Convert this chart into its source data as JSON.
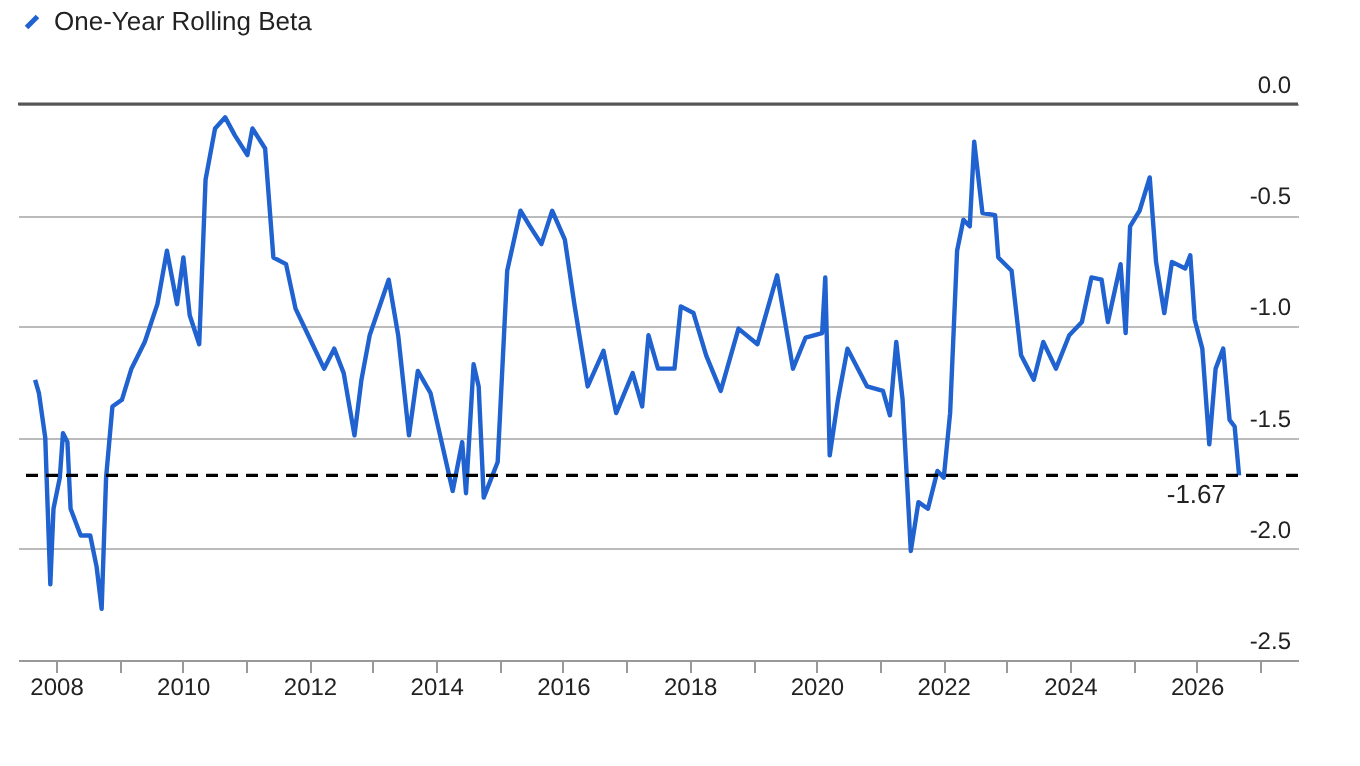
{
  "chart_data": {
    "type": "line",
    "legend": "top left",
    "grid": "y",
    "line_style": "solid",
    "marker": "none",
    "xlim": [
      2007.4,
      2027.6
    ],
    "xticks": [
      2008,
      {
        "value": 2009,
        "label": null
      },
      2010,
      {
        "value": 2011,
        "label": null
      },
      2012,
      {
        "value": 2013,
        "label": null
      },
      2014,
      {
        "value": 2015,
        "label": null
      },
      2016,
      {
        "value": 2017,
        "label": null
      },
      2018,
      {
        "value": 2019,
        "label": null
      },
      2020,
      {
        "value": 2021,
        "label": null
      },
      2022,
      {
        "value": 2023,
        "label": null
      },
      2024,
      {
        "value": 2025,
        "label": null
      },
      2026,
      {
        "value": 2027,
        "label": null
      }
    ],
    "ylim": [
      -2.5,
      0
    ],
    "yticks": [
      {
        "value": 0,
        "label": "0.0"
      },
      {
        "value": -0.5,
        "label": "-0.5"
      },
      {
        "value": -1,
        "label": "-1.0"
      },
      {
        "value": -1.5,
        "label": "-1.5"
      },
      {
        "value": -2,
        "label": "-2.0"
      },
      {
        "value": -2.5,
        "label": "-2.5"
      }
    ],
    "ref_lines": [
      {
        "axis": "y",
        "value": 0,
        "color": "#555555",
        "line_style": "solid"
      },
      {
        "axis": "y",
        "value": -1.67,
        "label": "-1.67",
        "color": "#000000",
        "line_style": "dashed"
      }
    ],
    "series": [
      {
        "name": "One-Year Rolling Beta",
        "color": "#1f62d0",
        "x": [
          2007.67,
          2007.73,
          2007.83,
          2007.91,
          2007.96,
          2008.06,
          2008.11,
          2008.18,
          2008.23,
          2008.39,
          2008.54,
          2008.64,
          2008.72,
          2008.79,
          2008.89,
          2009.04,
          2009.19,
          2009.4,
          2009.6,
          2009.75,
          2009.91,
          2010.01,
          2010.11,
          2010.26,
          2010.36,
          2010.51,
          2010.67,
          2010.82,
          2011.02,
          2011.1,
          2011.3,
          2011.43,
          2011.63,
          2011.78,
          2011.98,
          2012.23,
          2012.39,
          2012.54,
          2012.71,
          2012.82,
          2012.95,
          2013.25,
          2013.4,
          2013.57,
          2013.71,
          2013.91,
          2014.26,
          2014.41,
          2014.47,
          2014.59,
          2014.67,
          2014.75,
          2014.97,
          2015.12,
          2015.33,
          2015.48,
          2015.66,
          2015.83,
          2016.03,
          2016.18,
          2016.39,
          2016.64,
          2016.84,
          2017.1,
          2017.25,
          2017.35,
          2017.5,
          2017.76,
          2017.86,
          2018.06,
          2018.26,
          2018.49,
          2018.77,
          2019.07,
          2019.38,
          2019.63,
          2019.83,
          2020.09,
          2020.14,
          2020.21,
          2020.34,
          2020.49,
          2020.8,
          2021.05,
          2021.16,
          2021.26,
          2021.36,
          2021.49,
          2021.61,
          2021.76,
          2021.91,
          2022.01,
          2022.11,
          2022.22,
          2022.32,
          2022.42,
          2022.49,
          2022.62,
          2022.82,
          2022.87,
          2023.08,
          2023.23,
          2023.43,
          2023.58,
          2023.78,
          2023.99,
          2024.19,
          2024.34,
          2024.5,
          2024.6,
          2024.8,
          2024.88,
          2024.95,
          2025.1,
          2025.26,
          2025.36,
          2025.49,
          2025.61,
          2025.82,
          2025.9,
          2025.97,
          2026.09,
          2026.2,
          2026.3,
          2026.42,
          2026.52,
          2026.6,
          2026.67
        ],
        "values": [
          -1.24,
          -1.3,
          -1.5,
          -2.16,
          -1.82,
          -1.68,
          -1.48,
          -1.52,
          -1.82,
          -1.94,
          -1.94,
          -2.08,
          -2.27,
          -1.68,
          -1.36,
          -1.33,
          -1.19,
          -1.07,
          -0.9,
          -0.66,
          -0.9,
          -0.69,
          -0.95,
          -1.08,
          -0.34,
          -0.11,
          -0.06,
          -0.14,
          -0.23,
          -0.11,
          -0.2,
          -0.69,
          -0.72,
          -0.92,
          -1.04,
          -1.19,
          -1.1,
          -1.21,
          -1.49,
          -1.24,
          -1.04,
          -0.79,
          -1.04,
          -1.49,
          -1.2,
          -1.3,
          -1.74,
          -1.52,
          -1.75,
          -1.17,
          -1.27,
          -1.77,
          -1.61,
          -0.75,
          -0.48,
          -0.55,
          -0.63,
          -0.48,
          -0.61,
          -0.9,
          -1.27,
          -1.11,
          -1.39,
          -1.21,
          -1.36,
          -1.04,
          -1.19,
          -1.19,
          -0.91,
          -0.94,
          -1.13,
          -1.29,
          -1.01,
          -1.08,
          -0.77,
          -1.19,
          -1.05,
          -1.03,
          -0.78,
          -1.58,
          -1.33,
          -1.1,
          -1.27,
          -1.29,
          -1.4,
          -1.07,
          -1.33,
          -2.01,
          -1.79,
          -1.82,
          -1.65,
          -1.68,
          -1.39,
          -0.66,
          -0.52,
          -0.55,
          -0.17,
          -0.49,
          -0.5,
          -0.69,
          -0.75,
          -1.13,
          -1.24,
          -1.07,
          -1.19,
          -1.04,
          -0.98,
          -0.78,
          -0.79,
          -0.98,
          -0.72,
          -1.03,
          -0.55,
          -0.48,
          -0.33,
          -0.71,
          -0.94,
          -0.71,
          -0.74,
          -0.68,
          -0.97,
          -1.1,
          -1.53,
          -1.19,
          -1.1,
          -1.42,
          -1.45,
          -1.67
        ]
      }
    ]
  }
}
